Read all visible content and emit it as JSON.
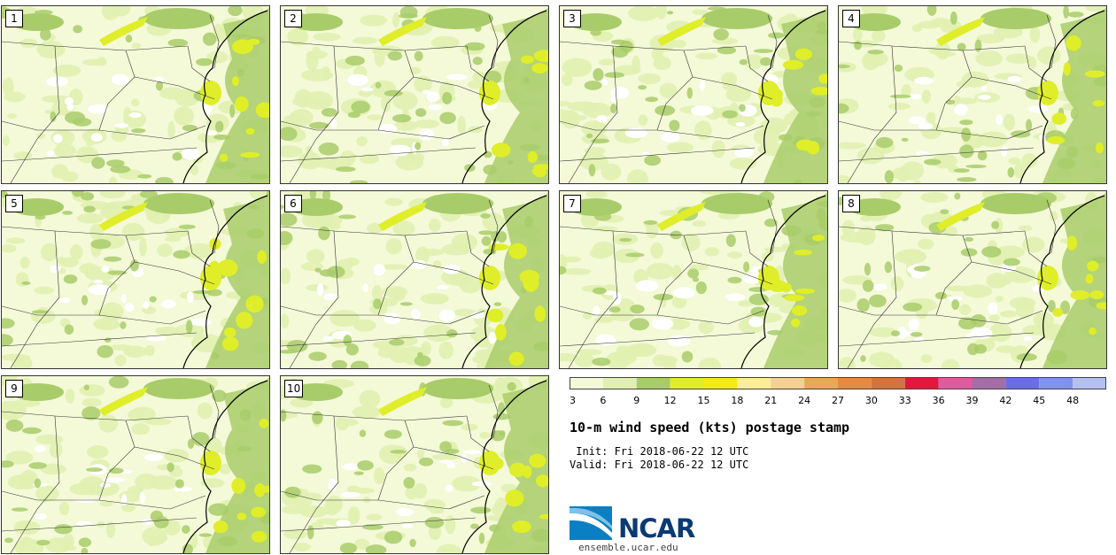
{
  "panels": [
    {
      "label": "1"
    },
    {
      "label": "2"
    },
    {
      "label": "3"
    },
    {
      "label": "4"
    },
    {
      "label": "5"
    },
    {
      "label": "6"
    },
    {
      "label": "7"
    },
    {
      "label": "8"
    },
    {
      "label": "9"
    },
    {
      "label": "10"
    }
  ],
  "colorbar": {
    "ticks": [
      "3",
      "6",
      "9",
      "12",
      "15",
      "18",
      "21",
      "24",
      "27",
      "30",
      "33",
      "36",
      "39",
      "42",
      "45",
      "48"
    ],
    "colors": [
      "#f4f9d8",
      "#e1efb1",
      "#a8cc6a",
      "#dfee28",
      "#f5ea14",
      "#fcee98",
      "#f5d090",
      "#eba658",
      "#e48a42",
      "#d3743e",
      "#e4173c",
      "#e05aa0",
      "#a56da8",
      "#6a6ee6",
      "#7f93ee",
      "#b4c0f2"
    ]
  },
  "title": "10-m wind speed (kts) postage stamp",
  "init_line": " Init: Fri 2018-06-22 12 UTC",
  "valid_line": "Valid: Fri 2018-06-22 12 UTC",
  "logo": {
    "text": "NCAR",
    "url": "ensemble.ucar.edu"
  }
}
